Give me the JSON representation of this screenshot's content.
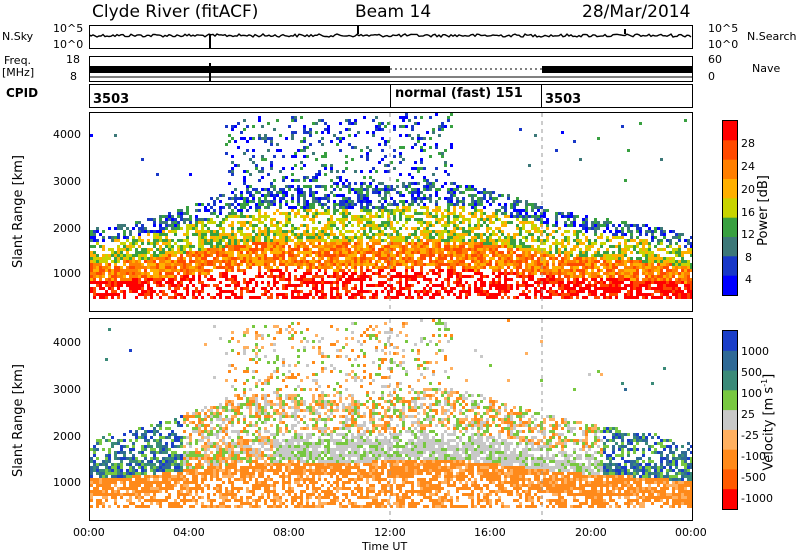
{
  "header": {
    "station": "Clyde River (fitACF)",
    "beam": "Beam 14",
    "date": "28/Mar/2014"
  },
  "top_panels": {
    "nsky_label": "N.Sky",
    "nsky_ticks": [
      "10^5",
      "10^0"
    ],
    "nsearch_label": "N.Search",
    "nsearch_ticks": [
      "10^5",
      "10^0"
    ],
    "freq_label_1": "Freq.",
    "freq_label_2": "[MHz]",
    "freq_ticks": [
      "18",
      "8"
    ],
    "nave_label": "Nave",
    "nave_ticks": [
      "60",
      "0"
    ],
    "cpid_label": "CPID",
    "cpid_segments": [
      {
        "label": "3503",
        "start_hour": 0
      },
      {
        "label": "normal (fast) 151",
        "start_hour": 12
      },
      {
        "label": "3503",
        "start_hour": 18
      }
    ]
  },
  "chart_data": [
    {
      "type": "heatmap",
      "ylabel": "Slant Range [km]",
      "xlabel": "",
      "x_ticks": [
        "00:00",
        "04:00",
        "08:00",
        "12:00",
        "16:00",
        "20:00",
        "00:00"
      ],
      "xlim_hours": [
        0,
        24
      ],
      "y_ticks": [
        1000,
        2000,
        3000,
        4000
      ],
      "ylim": [
        180,
        4600
      ],
      "colorbar": {
        "label": "Power [dB]",
        "ticks": [
          "28",
          "24",
          "20",
          "16",
          "12",
          "8",
          "4"
        ],
        "colors": [
          "#ff0000",
          "#ff4a00",
          "#ff7f00",
          "#ffb000",
          "#c8d400",
          "#38a040",
          "#3c7878",
          "#1838c8",
          "#0000ff"
        ],
        "range": [
          0,
          30
        ]
      }
    },
    {
      "type": "heatmap",
      "ylabel": "Slant Range [km]",
      "xlabel": "Time UT",
      "x_ticks": [
        "00:00",
        "04:00",
        "08:00",
        "12:00",
        "16:00",
        "20:00",
        "00:00"
      ],
      "xlim_hours": [
        0,
        24
      ],
      "y_ticks": [
        1000,
        2000,
        3000,
        4000
      ],
      "ylim": [
        180,
        4600
      ],
      "colorbar": {
        "label": "Velocity [m s^-1]",
        "ticks": [
          "1000",
          "500",
          "100",
          "25",
          "-25",
          "-100",
          "-500",
          "-1000"
        ],
        "colors": [
          "#1a3ec8",
          "#2f6a96",
          "#3a8a78",
          "#78c840",
          "#c8c8c8",
          "#ffb060",
          "#ff8a1a",
          "#ff5a00",
          "#ff0000"
        ],
        "range": [
          -1000,
          1000
        ]
      }
    }
  ]
}
